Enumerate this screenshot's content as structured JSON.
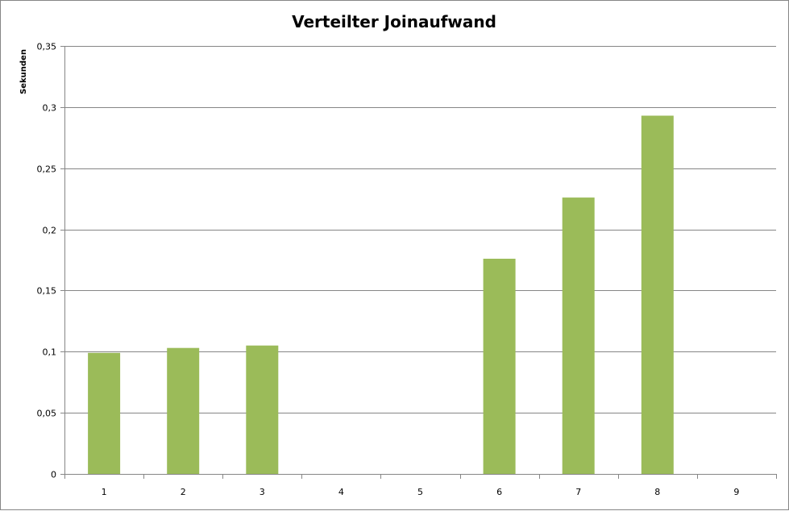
{
  "chart_data": {
    "type": "bar",
    "title": "Verteilter Joinaufwand",
    "xlabel": "",
    "ylabel": "Sekunden",
    "categories": [
      "1",
      "2",
      "3",
      "4",
      "5",
      "6",
      "7",
      "8",
      "9"
    ],
    "values": [
      0.099,
      0.103,
      0.105,
      0,
      0,
      0.176,
      0.226,
      0.293,
      0
    ],
    "ylim": [
      0,
      0.35
    ],
    "yticks": [
      "0",
      "0,05",
      "0,1",
      "0,15",
      "0,2",
      "0,25",
      "0,3",
      "0,35"
    ],
    "grid": true,
    "legend": "none",
    "colors": {
      "bar": "#9bbb59",
      "grid": "#868686",
      "axis": "#868686",
      "border": "#868686"
    }
  }
}
